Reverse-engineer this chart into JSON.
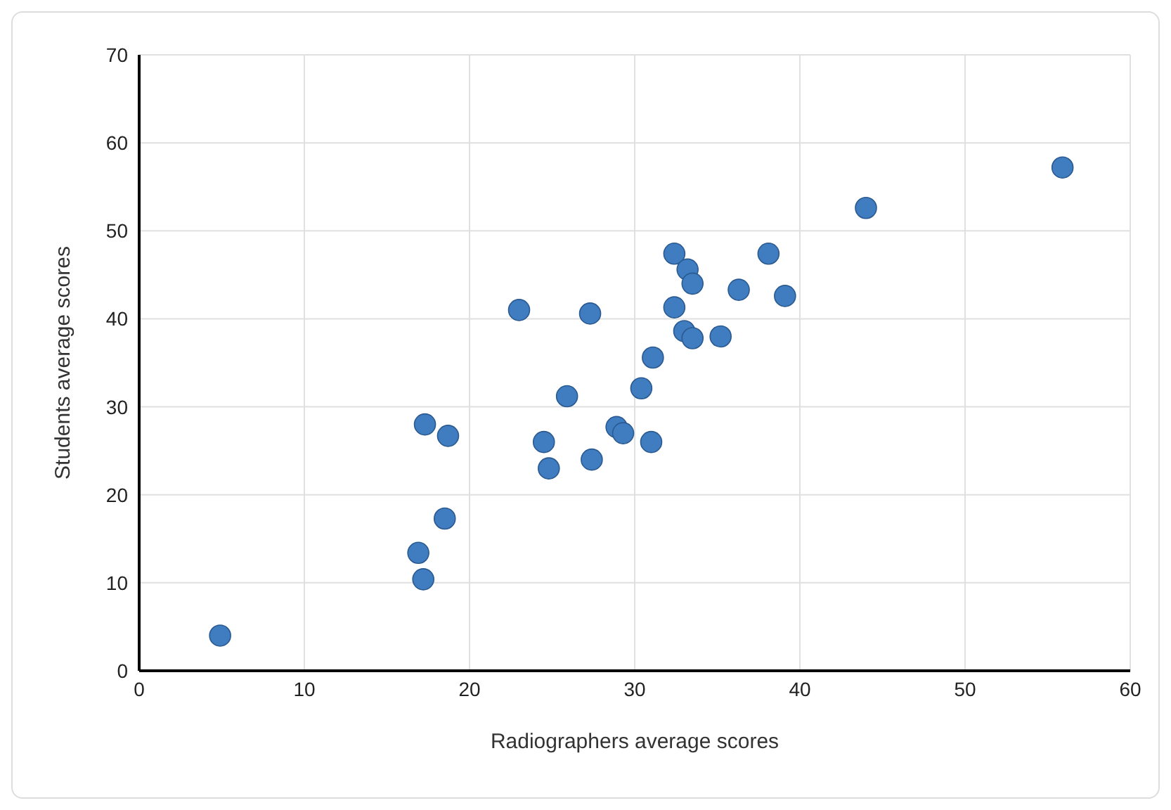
{
  "chart_data": {
    "type": "scatter",
    "xlabel": "Radiographers average scores",
    "ylabel": "Students average scores",
    "xlim": [
      0,
      60
    ],
    "xticks": [
      0,
      10,
      20,
      30,
      40,
      50,
      60
    ],
    "ylim": [
      0,
      70
    ],
    "yticks": [
      0,
      10,
      20,
      30,
      40,
      50,
      60,
      70
    ],
    "grid": true,
    "marker": "circle",
    "series": [
      {
        "color": "#3f7cc0",
        "x": [
          4.9,
          17.2,
          16.9,
          18.5,
          17.3,
          18.7,
          23.0,
          27.3,
          24.5,
          24.8,
          27.4,
          25.9,
          28.9,
          29.3,
          31.0,
          30.4,
          31.1,
          32.4,
          33.2,
          33.5,
          32.4,
          33.0,
          33.5,
          35.2,
          36.3,
          38.1,
          39.1,
          44.0,
          55.9
        ],
        "values": [
          4.0,
          10.4,
          13.4,
          17.3,
          28.0,
          26.7,
          41.0,
          40.6,
          26.0,
          23.0,
          24.0,
          31.2,
          27.7,
          27.0,
          26.0,
          32.1,
          35.6,
          47.4,
          45.6,
          44.0,
          41.3,
          38.6,
          37.8,
          38.0,
          43.3,
          47.4,
          42.6,
          52.6,
          57.2
        ]
      }
    ]
  }
}
